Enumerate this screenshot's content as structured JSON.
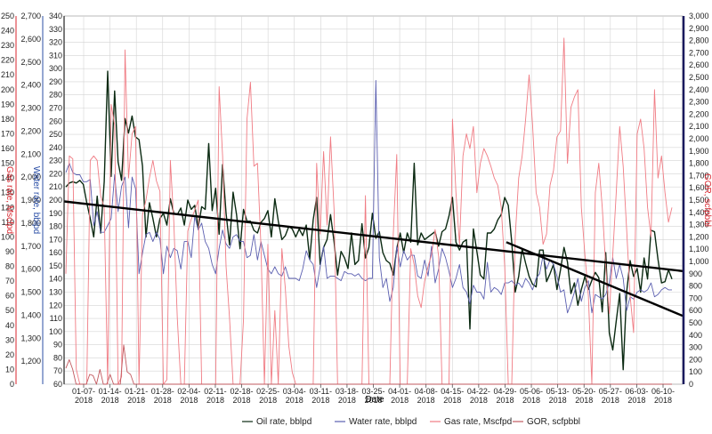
{
  "chart_data": {
    "type": "line",
    "xlabel": "Date",
    "x_tick_labels": [
      "01-07-\n2018",
      "01-14-\n2018",
      "01-21-\n2018",
      "01-28-\n2018",
      "02-04-\n2018",
      "02-11-\n2018",
      "02-18-\n2018",
      "02-25-\n2018",
      "03-04-\n2018",
      "03-11-\n2018",
      "03-18-\n2018",
      "03-25-\n2018",
      "04-01-\n2018",
      "04-08-\n2018",
      "04-15-\n2018",
      "04-22-\n2018",
      "04-29-\n2018",
      "05-06-\n2018",
      "05-13-\n2018",
      "05-20-\n2018",
      "05-27-\n2018",
      "06-03-\n2018",
      "06-10-\n2018"
    ],
    "grid": true,
    "legend_position": "bottom",
    "axes": [
      {
        "id": "gas",
        "title": "Gas rate, Mscfpd",
        "color": "#d9262e",
        "side": "left",
        "range": [
          0,
          250
        ],
        "ticks": [
          0,
          10,
          20,
          30,
          40,
          50,
          60,
          70,
          80,
          90,
          100,
          110,
          120,
          130,
          140,
          150,
          160,
          170,
          180,
          190,
          200,
          210,
          220,
          230,
          240,
          250
        ]
      },
      {
        "id": "water",
        "title": "Water rate, bblpd",
        "color": "#2b4fa6",
        "side": "left",
        "range": [
          1100,
          2700
        ],
        "ticks": [
          1200,
          1300,
          1400,
          1500,
          1600,
          1700,
          1800,
          1900,
          2000,
          2100,
          2200,
          2300,
          2400,
          2500,
          2600,
          2700
        ]
      },
      {
        "id": "oil",
        "title": "",
        "color": "#222222",
        "side": "left",
        "range": [
          60,
          340
        ],
        "ticks": [
          60,
          70,
          80,
          90,
          100,
          110,
          120,
          130,
          140,
          150,
          160,
          170,
          180,
          190,
          200,
          210,
          220,
          230,
          240,
          250,
          260,
          270,
          280,
          290,
          300,
          310,
          320,
          330,
          340
        ]
      },
      {
        "id": "gor",
        "title": "GOR, scfpbbl",
        "color": "#d9262e",
        "side": "right",
        "range": [
          0,
          3000
        ],
        "ticks": [
          0,
          100,
          200,
          300,
          400,
          500,
          600,
          700,
          800,
          900,
          1000,
          1100,
          1200,
          1300,
          1400,
          1500,
          1600,
          1700,
          1800,
          1900,
          2000,
          2100,
          2200,
          2300,
          2400,
          2500,
          2600,
          2700,
          2800,
          2900,
          3000
        ]
      }
    ],
    "series": [
      {
        "name": "Oil rate, bblpd",
        "color": "#0b2a12",
        "axis": "oil",
        "style": "line",
        "values": [
          210,
          213,
          214,
          213,
          215,
          212,
          198,
          186,
          172,
          203,
          175,
          214,
          298,
          218,
          283,
          229,
          215,
          262,
          251,
          264,
          248,
          246,
          226,
          172,
          198,
          186,
          172,
          186,
          190,
          181,
          201,
          190,
          189,
          194,
          181,
          200,
          193,
          196,
          179,
          195,
          193,
          243,
          192,
          209,
          174,
          227,
          190,
          166,
          206,
          189,
          163,
          193,
          184,
          184,
          177,
          175,
          183,
          186,
          192,
          172,
          201,
          184,
          170,
          173,
          180,
          178,
          172,
          178,
          173,
          181,
          155,
          185,
          202,
          151,
          164,
          170,
          189,
          168,
          143,
          161,
          156,
          148,
          175,
          151,
          154,
          182,
          156,
          164,
          190,
          171,
          176,
          160,
          154,
          152,
          143,
          163,
          175,
          160,
          175,
          168,
          228,
          166,
          175,
          170,
          172,
          174,
          176,
          165,
          176,
          178,
          188,
          202,
          168,
          162,
          168,
          170,
          102,
          178,
          161,
          143,
          140,
          175,
          175,
          178,
          185,
          189,
          202,
          196,
          168,
          130,
          142,
          163,
          152,
          142,
          136,
          134,
          162,
          162,
          138,
          144,
          151,
          132,
          147,
          164,
          153,
          129,
          137,
          120,
          132,
          142,
          132,
          139,
          145,
          141,
          115,
          160,
          99,
          86,
          108,
          129,
          71,
          130,
          154,
          142,
          148,
          130,
          156,
          140,
          177,
          176,
          155,
          137,
          138,
          147,
          140
        ]
      },
      {
        "name": "Water rate, bblpd",
        "color": "#5b5fb0",
        "axis": "water",
        "style": "line",
        "values": [
          2020,
          2060,
          2020,
          2010,
          2010,
          1980,
          1980,
          1990,
          1790,
          1850,
          1760,
          1760,
          1790,
          1820,
          2010,
          1850,
          1960,
          2000,
          1780,
          2000,
          1950,
          1580,
          1670,
          1750,
          1760,
          1720,
          1760,
          1730,
          1580,
          1700,
          1650,
          1690,
          1680,
          1600,
          1720,
          1720,
          1650,
          1830,
          1770,
          1800,
          1720,
          1690,
          1620,
          1580,
          1690,
          1770,
          1710,
          1690,
          1740,
          1750,
          1720,
          1720,
          1650,
          1660,
          1750,
          1640,
          1720,
          1660,
          1600,
          1580,
          1610,
          1580,
          1570,
          1610,
          1560,
          1560,
          1560,
          1550,
          1600,
          1680,
          1640,
          1620,
          1520,
          1610,
          1700,
          1560,
          1570,
          1570,
          1560,
          1550,
          1590,
          1580,
          1580,
          1570,
          1580,
          1560,
          1550,
          1560,
          1560,
          2420,
          1650,
          1520,
          1560,
          1460,
          1520,
          1700,
          1610,
          1680,
          1640,
          1660,
          1660,
          1570,
          1560,
          1640,
          1570,
          1700,
          1540,
          1600,
          1690,
          1650,
          1590,
          1520,
          1560,
          1620,
          1520,
          1500,
          1450,
          1530,
          1500,
          1500,
          1470,
          1630,
          1500,
          1520,
          1510,
          1490,
          1540,
          1540,
          1550,
          1530,
          1540,
          1520,
          1560,
          1540,
          1510,
          1560,
          1580,
          1660,
          1600,
          1640,
          1620,
          1570,
          1500,
          1510,
          1410,
          1450,
          1500,
          1560,
          1460,
          1520,
          1550,
          1410,
          1490,
          1480,
          1470,
          1490,
          1540,
          1650,
          1560,
          1620,
          1560,
          1420,
          1480,
          1470,
          1500,
          1510,
          1500,
          1510,
          1540,
          1480,
          1490,
          1510,
          1520,
          1510,
          1510
        ]
      },
      {
        "name": "Gas rate, Mscfpd",
        "color": "#f07c84",
        "axis": "gas",
        "style": "line",
        "values": [
          75,
          155,
          153,
          10,
          0,
          0,
          0,
          152,
          155,
          152,
          128,
          120,
          0,
          190,
          176,
          0,
          5,
          227,
          140,
          170,
          175,
          0,
          115,
          125,
          140,
          152,
          138,
          131,
          0,
          3,
          152,
          110,
          45,
          0,
          0,
          104,
          112,
          118,
          125,
          0,
          0,
          0,
          0,
          0,
          202,
          155,
          80,
          45,
          0,
          0,
          0,
          44,
          180,
          205,
          148,
          150,
          94,
          0,
          95,
          0,
          50,
          0,
          92,
          65,
          26,
          8,
          0,
          0,
          0,
          0,
          0,
          0,
          150,
          102,
          158,
          108,
          168,
          118,
          0,
          0,
          0,
          0,
          0,
          0,
          0,
          0,
          128,
          0,
          0,
          0,
          0,
          0,
          0,
          0,
          102,
          156,
          0,
          0,
          0,
          92,
          81,
          60,
          52,
          70,
          80,
          88,
          105,
          87,
          0,
          0,
          0,
          180,
          130,
          95,
          155,
          170,
          160,
          175,
          130,
          150,
          160,
          155,
          148,
          140,
          135,
          120,
          80,
          0,
          0,
          100,
          140,
          155,
          180,
          210,
          176,
          130,
          120,
          95,
          102,
          135,
          145,
          168,
          172,
          235,
          150,
          188,
          195,
          200,
          120,
          88,
          60,
          0,
          130,
          150,
          120,
          80,
          48,
          88,
          130,
          175,
          148,
          105,
          60,
          35,
          170,
          180,
          160,
          120,
          100,
          200,
          140,
          155,
          130,
          110,
          120
        ]
      },
      {
        "name": "GOR, scfpbbl",
        "color": "#c2595f",
        "axis": "gor",
        "style": "line",
        "values": [
          130,
          200,
          120,
          0,
          0,
          0,
          0,
          80,
          70,
          0,
          120,
          0,
          0,
          80,
          0,
          0,
          0,
          320,
          100,
          80,
          0,
          0,
          0,
          0,
          0,
          0,
          0,
          0,
          0,
          0,
          0,
          0,
          0,
          0,
          0,
          0,
          0,
          0,
          0,
          0,
          0,
          0,
          0,
          0,
          0,
          0,
          0,
          0,
          0,
          0,
          0,
          0,
          0,
          0,
          0,
          0,
          0,
          0,
          0,
          0,
          0,
          0,
          0,
          0,
          0,
          0,
          0,
          0,
          0,
          0,
          0,
          0,
          0,
          0,
          0,
          0,
          0,
          0,
          0,
          0,
          0,
          0,
          0,
          0,
          0,
          0,
          0,
          0,
          0,
          0,
          0,
          0,
          0,
          0,
          0,
          0,
          0,
          0,
          0,
          0,
          0,
          0,
          0,
          0,
          0,
          0,
          0,
          0,
          0,
          0,
          0,
          0,
          0,
          0,
          0,
          0,
          0,
          0,
          0,
          0,
          0,
          0,
          0,
          0,
          0,
          0,
          0,
          0,
          0,
          0,
          0,
          0,
          0,
          0,
          0,
          0,
          0,
          0,
          0,
          0,
          0,
          0,
          0,
          0,
          0,
          0,
          0,
          0,
          0,
          0,
          0,
          0,
          0,
          0,
          0,
          0,
          0,
          0,
          0,
          0,
          0,
          0,
          0,
          0,
          0,
          0,
          0,
          0,
          0,
          0,
          0,
          0,
          0,
          0,
          0,
          0,
          0,
          0,
          0
        ]
      },
      {
        "name": "trend-overall",
        "color": "#000000",
        "axis": "oil",
        "style": "trend",
        "values": [
          199,
          146
        ]
      },
      {
        "name": "trend-decline",
        "color": "#000000",
        "axis": "oil",
        "style": "trend",
        "values": [
          168,
          112
        ]
      }
    ]
  }
}
